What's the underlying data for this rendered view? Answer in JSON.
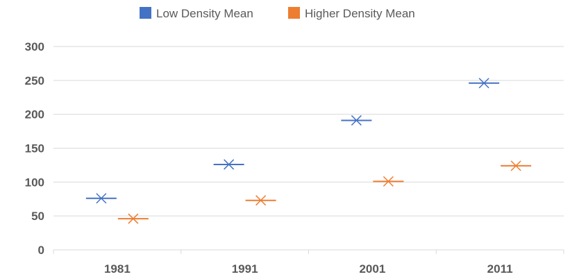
{
  "chart_data": {
    "type": "scatter",
    "categories": [
      "1981",
      "1991",
      "2001",
      "2011"
    ],
    "series": [
      {
        "name": "Low Density Mean",
        "color": "#4472C4",
        "values": [
          76,
          126,
          191,
          246
        ]
      },
      {
        "name": "Higher Density Mean",
        "color": "#ED7D31",
        "values": [
          46,
          73,
          101,
          124
        ]
      }
    ],
    "y_ticks": [
      "0",
      "50",
      "100",
      "150",
      "200",
      "250",
      "300"
    ],
    "ylim": [
      0,
      300
    ],
    "grid": true,
    "legend_position": "top",
    "marker": "cross-with-dash"
  }
}
